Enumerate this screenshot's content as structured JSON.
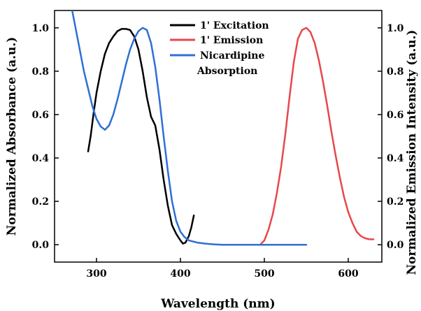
{
  "chart_data": {
    "type": "line",
    "xlabel": "Wavelength (nm)",
    "ylabel_left": "Normalized Absorbance (a.u.)",
    "ylabel_right": "Normalized Emission Intensity (a.u.)",
    "xlim": [
      250,
      640
    ],
    "ylim": [
      -0.08,
      1.08
    ],
    "x_ticks": [
      300,
      400,
      500,
      600
    ],
    "y_ticks": [
      0.0,
      0.2,
      0.4,
      0.6,
      0.8,
      1.0
    ],
    "x_tick_labels": [
      "300",
      "400",
      "500",
      "600"
    ],
    "y_tick_labels": [
      "0.0",
      "0.2",
      "0.4",
      "0.6",
      "0.8",
      "1.0"
    ],
    "legend_position": "top-center",
    "series": [
      {
        "name": "1' Excitation",
        "color": "#000000",
        "x": [
          290,
          293,
          297,
          300,
          305,
          310,
          315,
          320,
          325,
          330,
          335,
          340,
          345,
          350,
          355,
          360,
          365,
          370,
          375,
          380,
          385,
          390,
          395,
          400,
          403,
          406,
          410,
          413,
          416
        ],
        "y": [
          0.43,
          0.5,
          0.62,
          0.7,
          0.8,
          0.88,
          0.93,
          0.96,
          0.985,
          0.995,
          0.995,
          0.99,
          0.96,
          0.9,
          0.8,
          0.68,
          0.59,
          0.55,
          0.44,
          0.3,
          0.18,
          0.09,
          0.05,
          0.02,
          0.005,
          0.01,
          0.04,
          0.08,
          0.135
        ]
      },
      {
        "name": "1' Emission",
        "color": "#e8474b",
        "x": [
          490,
          495,
          500,
          505,
          510,
          515,
          520,
          525,
          530,
          535,
          540,
          545,
          550,
          555,
          560,
          565,
          570,
          575,
          580,
          585,
          590,
          595,
          600,
          605,
          610,
          615,
          620,
          625,
          630
        ],
        "y": [
          0.0,
          0.0,
          0.02,
          0.07,
          0.14,
          0.24,
          0.36,
          0.51,
          0.68,
          0.84,
          0.95,
          0.99,
          1.0,
          0.98,
          0.93,
          0.85,
          0.75,
          0.64,
          0.52,
          0.41,
          0.31,
          0.22,
          0.15,
          0.1,
          0.06,
          0.04,
          0.03,
          0.025,
          0.025
        ]
      },
      {
        "name": "Nicardipine Absorption",
        "color": "#2f6fd6",
        "x": [
          270,
          275,
          280,
          285,
          290,
          295,
          300,
          305,
          310,
          315,
          320,
          325,
          330,
          335,
          340,
          345,
          350,
          355,
          360,
          365,
          370,
          375,
          380,
          385,
          390,
          395,
          400,
          405,
          410,
          420,
          430,
          440,
          450,
          500,
          550
        ],
        "y": [
          1.1,
          1.0,
          0.9,
          0.8,
          0.72,
          0.64,
          0.58,
          0.545,
          0.53,
          0.55,
          0.6,
          0.67,
          0.75,
          0.83,
          0.9,
          0.95,
          0.985,
          1.0,
          0.99,
          0.93,
          0.82,
          0.67,
          0.5,
          0.34,
          0.2,
          0.11,
          0.06,
          0.035,
          0.02,
          0.01,
          0.005,
          0.002,
          0.0,
          0.0,
          0.0
        ]
      }
    ]
  }
}
